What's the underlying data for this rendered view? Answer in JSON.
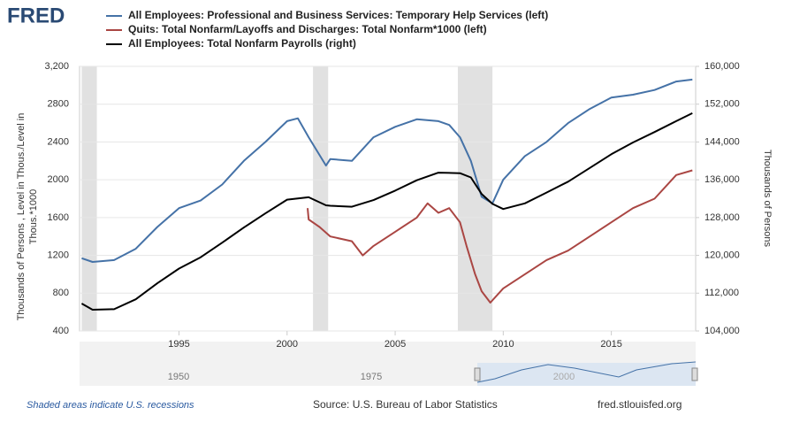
{
  "chart_data": {
    "type": "line",
    "logo": "FRED",
    "ylabel": [
      "Thousands of Persons , Level in Thous./Level in",
      "Thous.*1000"
    ],
    "y2label": "Thousands of Persons",
    "xlim": [
      1990.4,
      2018.9
    ],
    "xticks": [
      1995,
      2000,
      2005,
      2010,
      2015
    ],
    "ylim": [
      400,
      3200
    ],
    "yticks": [
      400,
      800,
      1200,
      1600,
      2000,
      2400,
      2800,
      {
        "value": 3200,
        "label": "3,200"
      }
    ],
    "y2lim": [
      104000,
      160000
    ],
    "y2ticks": [
      {
        "value": 104000,
        "label": "104,000"
      },
      {
        "value": 112000,
        "label": "112,000"
      },
      {
        "value": 120000,
        "label": "120,000"
      },
      {
        "value": 128000,
        "label": "128,000"
      },
      {
        "value": 136000,
        "label": "136,000"
      },
      {
        "value": 144000,
        "label": "144,000"
      },
      {
        "value": 152000,
        "label": "152,000"
      },
      {
        "value": 160000,
        "label": "160,000"
      }
    ],
    "grid": true,
    "recessions": [
      [
        1990.5,
        1991.2
      ],
      [
        2001.2,
        2001.9
      ],
      [
        2007.9,
        2009.5
      ]
    ],
    "series": [
      {
        "name": "All Employees: Professional and Business Services: Temporary Help Services (left)",
        "color": "#4572a7",
        "x": [
          1990.5,
          1991,
          1992,
          1993,
          1994,
          1995,
          1996,
          1997,
          1998,
          1999,
          2000,
          2000.5,
          2001,
          2001.8,
          2002,
          2003,
          2004,
          2005,
          2006,
          2007,
          2007.5,
          2008,
          2008.5,
          2009,
          2009.5,
          2010,
          2011,
          2012,
          2013,
          2014,
          2015,
          2016,
          2017,
          2018,
          2018.75
        ],
        "values": [
          1170,
          1130,
          1150,
          1270,
          1500,
          1700,
          1780,
          1950,
          2200,
          2400,
          2620,
          2650,
          2450,
          2150,
          2220,
          2200,
          2450,
          2560,
          2640,
          2620,
          2580,
          2450,
          2200,
          1820,
          1750,
          2000,
          2250,
          2400,
          2600,
          2750,
          2870,
          2900,
          2950,
          3040,
          3060
        ]
      },
      {
        "name": "Quits: Total Nonfarm/Layoffs and Discharges: Total Nonfarm*1000 (left)",
        "color": "#aa4643",
        "x": [
          2000.95,
          2001,
          2001.5,
          2002,
          2003,
          2003.5,
          2004,
          2005,
          2006,
          2006.5,
          2007,
          2007.5,
          2008,
          2008.3,
          2008.7,
          2009,
          2009.4,
          2010,
          2011,
          2012,
          2013,
          2014,
          2015,
          2016,
          2017,
          2018,
          2018.75
        ],
        "values": [
          1700,
          1580,
          1500,
          1400,
          1350,
          1200,
          1300,
          1450,
          1600,
          1750,
          1650,
          1700,
          1550,
          1300,
          1000,
          820,
          700,
          850,
          1000,
          1150,
          1250,
          1400,
          1550,
          1700,
          1800,
          2050,
          2100
        ]
      },
      {
        "name": "All Employees: Total Nonfarm Payrolls (right)",
        "color": "#000000",
        "axis": "y2",
        "x": [
          1990.5,
          1991,
          1992,
          1993,
          1994,
          1995,
          1996,
          1997,
          1998,
          1999,
          2000,
          2001,
          2001.8,
          2002,
          2003,
          2004,
          2005,
          2006,
          2007,
          2008,
          2008.5,
          2009,
          2009.5,
          2010,
          2011,
          2012,
          2013,
          2014,
          2015,
          2016,
          2017,
          2018,
          2018.75
        ],
        "values": [
          109800,
          108500,
          108600,
          110700,
          114100,
          117200,
          119600,
          122700,
          125900,
          128900,
          131800,
          132300,
          130600,
          130500,
          130300,
          131700,
          133700,
          135900,
          137500,
          137400,
          136500,
          133000,
          130900,
          129800,
          131000,
          133300,
          135600,
          138500,
          141400,
          143900,
          146100,
          148400,
          150100
        ]
      }
    ],
    "navigator_labels": [
      "1950",
      "1975",
      "2000"
    ],
    "footer": {
      "note": "Shaded areas indicate U.S. recessions",
      "source": "Source: U.S. Bureau of Labor Statistics",
      "site": "fred.stlouisfed.org"
    }
  }
}
